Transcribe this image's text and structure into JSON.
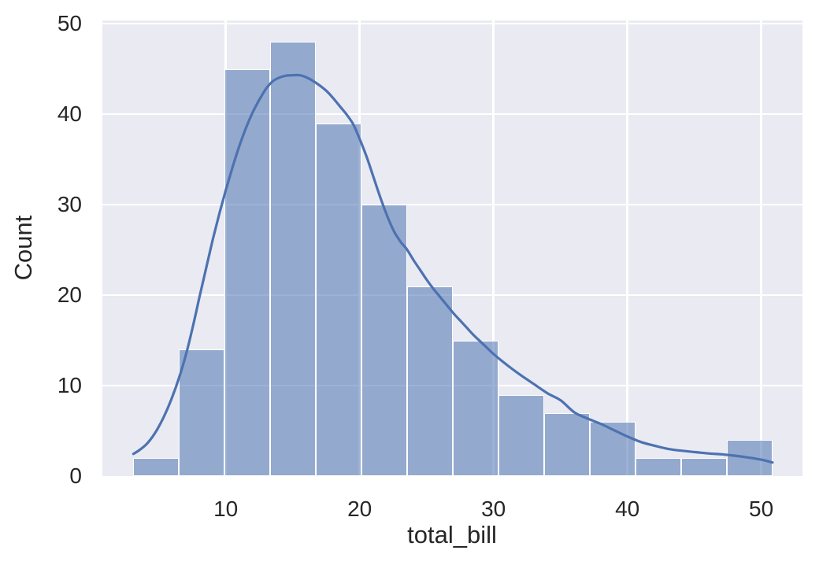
{
  "figure": {
    "colors": {
      "background": "#ffffff",
      "axes_background": "#eaeaf2",
      "grid": "#ffffff",
      "bar_fill": "rgba(76,114,176,0.55)",
      "bar_edge": "#ffffff",
      "kde_line": "#4c72b0",
      "text": "#262626"
    }
  },
  "chart_data": {
    "type": "bar",
    "subtype": "histogram-with-kde",
    "title": "",
    "xlabel": "total_bill",
    "ylabel": "Count",
    "xlim": [
      0.75,
      53.08
    ],
    "ylim": [
      0,
      50.4
    ],
    "x_ticks": [
      10,
      20,
      30,
      40,
      50
    ],
    "y_ticks": [
      0,
      10,
      20,
      30,
      40,
      50
    ],
    "grid": "on",
    "legend_position": "none",
    "bins": {
      "edges": [
        3.07,
        6.48,
        9.89,
        13.3,
        16.71,
        20.12,
        23.53,
        26.94,
        30.35,
        33.76,
        37.17,
        40.58,
        43.99,
        47.4,
        50.81
      ],
      "counts": [
        2,
        14,
        45,
        48,
        39,
        30,
        21,
        15,
        9,
        7,
        6,
        2,
        2,
        4
      ]
    },
    "kde_overlay": {
      "x": [
        3.07,
        3.5,
        4,
        4.5,
        5,
        5.5,
        6,
        6.5,
        7,
        7.5,
        8,
        8.5,
        9,
        9.5,
        10,
        10.5,
        11,
        11.5,
        12,
        12.5,
        13,
        13.5,
        14,
        14.5,
        15,
        15.5,
        16,
        16.5,
        17,
        17.5,
        18,
        18.5,
        19,
        19.5,
        20,
        20.5,
        21,
        21.5,
        22,
        22.5,
        23,
        23.5,
        24,
        24.5,
        25,
        25.5,
        26,
        26.5,
        27,
        27.5,
        28,
        28.5,
        29,
        29.5,
        30,
        31,
        32,
        33,
        34,
        35,
        36,
        37,
        38,
        39,
        40,
        41,
        42,
        43,
        44,
        45,
        46,
        47,
        48,
        49,
        50,
        50.81
      ],
      "y": [
        2.5,
        2.9,
        3.5,
        4.4,
        5.6,
        7.1,
        8.9,
        11.0,
        13.5,
        16.5,
        19.8,
        23.0,
        26.2,
        29.1,
        31.8,
        34.3,
        36.6,
        38.6,
        40.3,
        41.7,
        42.9,
        43.7,
        44.1,
        44.3,
        44.35,
        44.35,
        44.1,
        43.7,
        43.2,
        42.6,
        41.8,
        40.9,
        40.0,
        38.9,
        37.2,
        35.3,
        33.1,
        30.9,
        28.9,
        27.2,
        26.0,
        25.1,
        23.9,
        22.8,
        21.7,
        20.7,
        19.8,
        18.9,
        18.0,
        17.2,
        16.4,
        15.6,
        14.9,
        14.2,
        13.5,
        12.3,
        11.2,
        10.2,
        9.2,
        8.4,
        7.1,
        6.4,
        5.8,
        5.1,
        4.4,
        3.8,
        3.4,
        3.05,
        2.85,
        2.7,
        2.55,
        2.45,
        2.3,
        2.1,
        1.85,
        1.55
      ]
    }
  }
}
